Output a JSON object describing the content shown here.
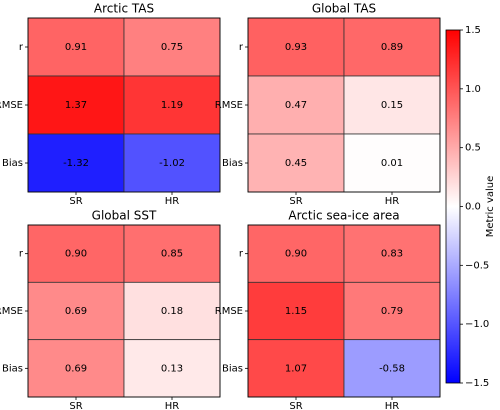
{
  "chart_data": [
    {
      "type": "heatmap",
      "title": "Arctic TAS",
      "x_categories": [
        "SR",
        "HR"
      ],
      "y_categories": [
        "r",
        "RMSE",
        "Bias"
      ],
      "values": [
        [
          0.91,
          0.75
        ],
        [
          1.37,
          1.19
        ],
        [
          -1.32,
          -1.02
        ]
      ],
      "value_labels": [
        [
          "0.91",
          "0.75"
        ],
        [
          "1.37",
          "1.19"
        ],
        [
          "-1.32",
          "-1.02"
        ]
      ]
    },
    {
      "type": "heatmap",
      "title": "Global TAS",
      "x_categories": [
        "SR",
        "HR"
      ],
      "y_categories": [
        "r",
        "RMSE",
        "Bias"
      ],
      "values": [
        [
          0.93,
          0.89
        ],
        [
          0.47,
          0.15
        ],
        [
          0.45,
          0.01
        ]
      ],
      "value_labels": [
        [
          "0.93",
          "0.89"
        ],
        [
          "0.47",
          "0.15"
        ],
        [
          "0.45",
          "0.01"
        ]
      ]
    },
    {
      "type": "heatmap",
      "title": "Global SST",
      "x_categories": [
        "SR",
        "HR"
      ],
      "y_categories": [
        "r",
        "RMSE",
        "Bias"
      ],
      "values": [
        [
          0.9,
          0.85
        ],
        [
          0.69,
          0.18
        ],
        [
          0.69,
          0.13
        ]
      ],
      "value_labels": [
        [
          "0.90",
          "0.85"
        ],
        [
          "0.69",
          "0.18"
        ],
        [
          "0.69",
          "0.13"
        ]
      ]
    },
    {
      "type": "heatmap",
      "title": "Arctic sea-ice area",
      "x_categories": [
        "SR",
        "HR"
      ],
      "y_categories": [
        "r",
        "RMSE",
        "Bias"
      ],
      "values": [
        [
          0.9,
          0.83
        ],
        [
          1.15,
          0.79
        ],
        [
          1.07,
          -0.58
        ]
      ],
      "value_labels": [
        [
          "0.90",
          "0.83"
        ],
        [
          "1.15",
          "0.79"
        ],
        [
          "1.07",
          "-0.58"
        ]
      ]
    }
  ],
  "colorbar": {
    "label": "Metric value",
    "lim": [
      -1.5,
      1.5
    ],
    "colors": [
      "#0000ff",
      "#ffffff",
      "#ff0000"
    ],
    "ticks": [
      {
        "value": -1.5,
        "label": "−1.5"
      },
      {
        "value": -1,
        "label": "−1.0"
      },
      {
        "value": -0.5,
        "label": "−0.5"
      },
      {
        "value": 0,
        "label": "0.0"
      },
      0.5,
      {
        "value": 1,
        "label": "1.0"
      },
      1.5
    ]
  }
}
